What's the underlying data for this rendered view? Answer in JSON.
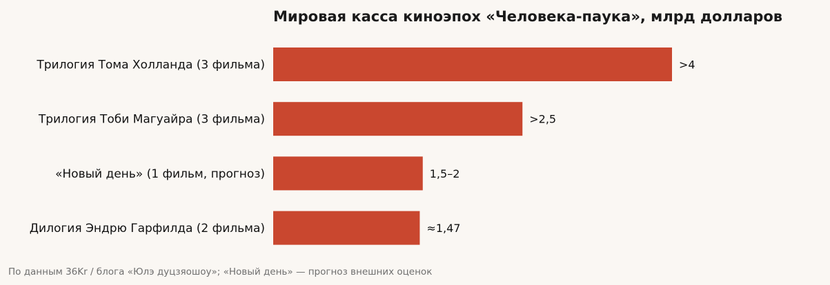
{
  "chart_data": {
    "type": "bar",
    "orientation": "horizontal",
    "title": "Мировая касса киноэпох «Человека-паука», млрд долларов",
    "categories": [
      "Трилогия Тома Холланда (3 фильма)",
      "Трилогия Тоби Магуайра (3 фильма)",
      "«Новый день» (1 фильм, прогноз)",
      "Дилогия Эндрю Гарфилда (2 фильма)"
    ],
    "values": [
      4.0,
      2.5,
      1.5,
      1.47
    ],
    "value_labels": [
      ">4",
      ">2,5",
      "1,5–2",
      "≈1,47"
    ],
    "xlim": [
      0,
      4.2
    ],
    "xlabel": "",
    "ylabel": "",
    "grid": false,
    "bar_color": "#c9472f",
    "footnote": "По данным 36Kr / блога «Юлэ дуцзяошоу»; «Новый день» — прогноз внешних оценок"
  }
}
